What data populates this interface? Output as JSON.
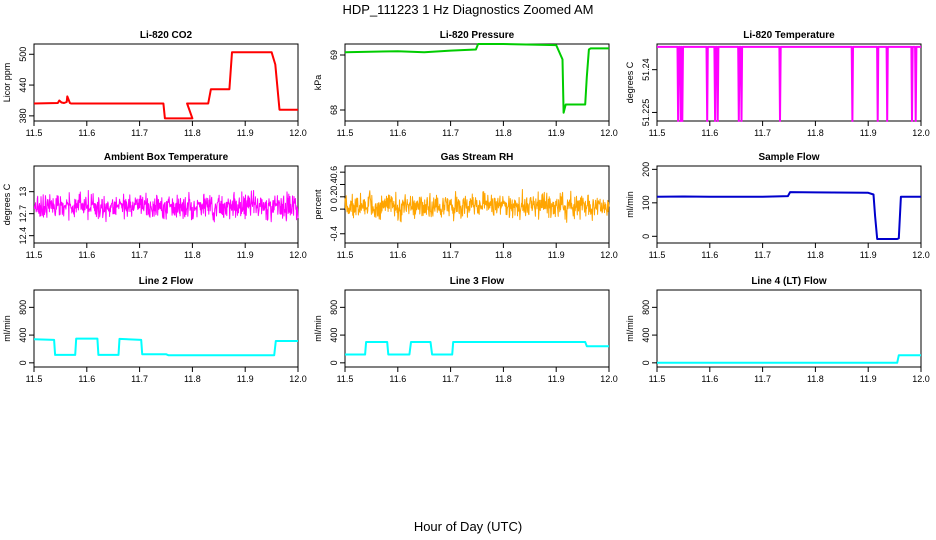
{
  "figure": {
    "title": "HDP_111223  1 Hz Diagnostics Zoomed AM",
    "xlabel": "Hour of Day (UTC)"
  },
  "chart_data": [
    {
      "type": "line",
      "title": "Li-820 CO2",
      "ylabel": "Licor ppm",
      "xlim": [
        11.5,
        12.0
      ],
      "ylim": [
        370,
        520
      ],
      "yticks": [
        380,
        440,
        500
      ],
      "xticks": [
        11.5,
        11.6,
        11.7,
        11.8,
        11.9,
        12.0
      ],
      "color": "#ff0000",
      "series": [
        {
          "x": [
            11.5,
            11.545,
            11.548,
            11.552,
            11.557,
            11.562,
            11.563,
            11.568,
            11.57,
            11.6,
            11.65,
            11.7,
            11.745,
            11.748,
            11.8,
            11.79,
            11.8,
            11.83,
            11.835,
            11.87,
            11.875,
            11.95,
            11.957,
            11.965,
            12.0
          ],
          "y": [
            404,
            405,
            410,
            406,
            405,
            407,
            418,
            405,
            404,
            404,
            404,
            404,
            404,
            375,
            375,
            404,
            404,
            404,
            432,
            432,
            504,
            504,
            480,
            392,
            392
          ]
        }
      ]
    },
    {
      "type": "line",
      "title": "Li-820 Pressure",
      "ylabel": "kPa",
      "xlim": [
        11.5,
        12.0
      ],
      "ylim": [
        67.8,
        69.2
      ],
      "yticks": [
        68.0,
        69.0
      ],
      "xticks": [
        11.5,
        11.6,
        11.7,
        11.8,
        11.9,
        12.0
      ],
      "color": "#00cc00",
      "series": [
        {
          "x": [
            11.5,
            11.6,
            11.65,
            11.7,
            11.748,
            11.752,
            11.8,
            11.9,
            11.9,
            11.912,
            11.914,
            11.918,
            11.955,
            11.958,
            11.962,
            11.965,
            11.99,
            12.0
          ],
          "y": [
            69.05,
            69.07,
            69.05,
            69.08,
            69.1,
            69.2,
            69.2,
            69.18,
            69.18,
            68.92,
            67.95,
            68.1,
            68.1,
            68.6,
            69.1,
            69.12,
            69.12,
            69.12
          ]
        }
      ]
    },
    {
      "type": "line",
      "title": "Li-820 Temperature",
      "ylabel": "degrees C",
      "xlim": [
        11.5,
        12.0
      ],
      "ylim": [
        51.222,
        51.249
      ],
      "yticks": [
        51.225,
        51.24
      ],
      "xticks": [
        11.5,
        11.6,
        11.7,
        11.8,
        11.9,
        12.0
      ],
      "color": "#ff00ff",
      "baseline": 51.248,
      "dip_to": 51.222,
      "dips": [
        11.54,
        11.545,
        11.548,
        11.595,
        11.61,
        11.615,
        11.655,
        11.66,
        11.733,
        11.87,
        11.918,
        11.936,
        11.983,
        11.99
      ]
    },
    {
      "type": "line",
      "title": "Ambient Box Temperature",
      "ylabel": "degrees C",
      "xlim": [
        11.5,
        12.0
      ],
      "ylim": [
        12.3,
        13.35
      ],
      "yticks": [
        12.4,
        12.7,
        13.0
      ],
      "xticks": [
        11.5,
        11.6,
        11.7,
        11.8,
        11.9,
        12.0
      ],
      "color": "#ff00ff",
      "noise": {
        "n": 720,
        "center": 12.8,
        "spread": 0.24,
        "min": 12.35,
        "max": 13.28
      }
    },
    {
      "type": "line",
      "title": "Gas Stream RH",
      "ylabel": "percent",
      "xlim": [
        11.5,
        12.0
      ],
      "ylim": [
        -0.55,
        0.7
      ],
      "yticks": [
        -0.4,
        0,
        0.2,
        0.4,
        0.6
      ],
      "xticks": [
        11.5,
        11.6,
        11.7,
        11.8,
        11.9,
        12.0
      ],
      "color": "#ffa500",
      "noise": {
        "n": 650,
        "center": 0.05,
        "spread": 0.3,
        "min": -0.45,
        "max": 0.62
      }
    },
    {
      "type": "line",
      "title": "Sample Flow",
      "ylabel": "ml/min",
      "xlim": [
        11.5,
        12.0
      ],
      "ylim": [
        -20,
        210
      ],
      "yticks": [
        0,
        100,
        200
      ],
      "xticks": [
        11.5,
        11.6,
        11.7,
        11.8,
        11.9,
        12.0
      ],
      "color": "#0000cc",
      "series": [
        {
          "x": [
            11.5,
            11.55,
            11.6,
            11.65,
            11.7,
            11.748,
            11.752,
            11.8,
            11.9,
            11.91,
            11.913,
            11.917,
            11.955,
            11.958,
            11.962,
            12.0
          ],
          "y": [
            118,
            119,
            118,
            118,
            118,
            120,
            132,
            131,
            130,
            125,
            60,
            -8,
            -8,
            -6,
            118,
            118
          ]
        }
      ]
    },
    {
      "type": "line",
      "title": "Line 2 Flow",
      "ylabel": "ml/min",
      "xlim": [
        11.5,
        12.0
      ],
      "ylim": [
        -60,
        1050
      ],
      "yticks": [
        0,
        400,
        800
      ],
      "xticks": [
        11.5,
        11.6,
        11.7,
        11.8,
        11.9,
        12.0
      ],
      "color": "#00ffff",
      "series": [
        {
          "x": [
            11.5,
            11.538,
            11.54,
            11.578,
            11.58,
            11.62,
            11.622,
            11.66,
            11.662,
            11.703,
            11.705,
            11.75,
            11.755,
            11.955,
            11.958,
            12.0
          ],
          "y": [
            340,
            330,
            115,
            115,
            350,
            350,
            115,
            115,
            345,
            330,
            125,
            125,
            108,
            108,
            315,
            315
          ]
        }
      ]
    },
    {
      "type": "line",
      "title": "Line 3 Flow",
      "ylabel": "ml/min",
      "xlim": [
        11.5,
        12.0
      ],
      "ylim": [
        -60,
        1050
      ],
      "yticks": [
        0,
        400,
        800
      ],
      "xticks": [
        11.5,
        11.6,
        11.7,
        11.8,
        11.9,
        12.0
      ],
      "color": "#00ffff",
      "series": [
        {
          "x": [
            11.5,
            11.538,
            11.54,
            11.58,
            11.582,
            11.622,
            11.625,
            11.662,
            11.665,
            11.703,
            11.705,
            11.955,
            11.958,
            12.0
          ],
          "y": [
            120,
            120,
            300,
            300,
            120,
            120,
            300,
            300,
            120,
            120,
            300,
            300,
            240,
            240
          ]
        }
      ]
    },
    {
      "type": "line",
      "title": "Line 4 (LT) Flow",
      "ylabel": "ml/min",
      "xlim": [
        11.5,
        12.0
      ],
      "ylim": [
        -60,
        1050
      ],
      "yticks": [
        0,
        400,
        800
      ],
      "xticks": [
        11.5,
        11.6,
        11.7,
        11.8,
        11.9,
        12.0
      ],
      "color": "#00ffff",
      "series": [
        {
          "x": [
            11.5,
            11.955,
            11.958,
            12.0
          ],
          "y": [
            0,
            0,
            110,
            110
          ]
        }
      ]
    }
  ]
}
